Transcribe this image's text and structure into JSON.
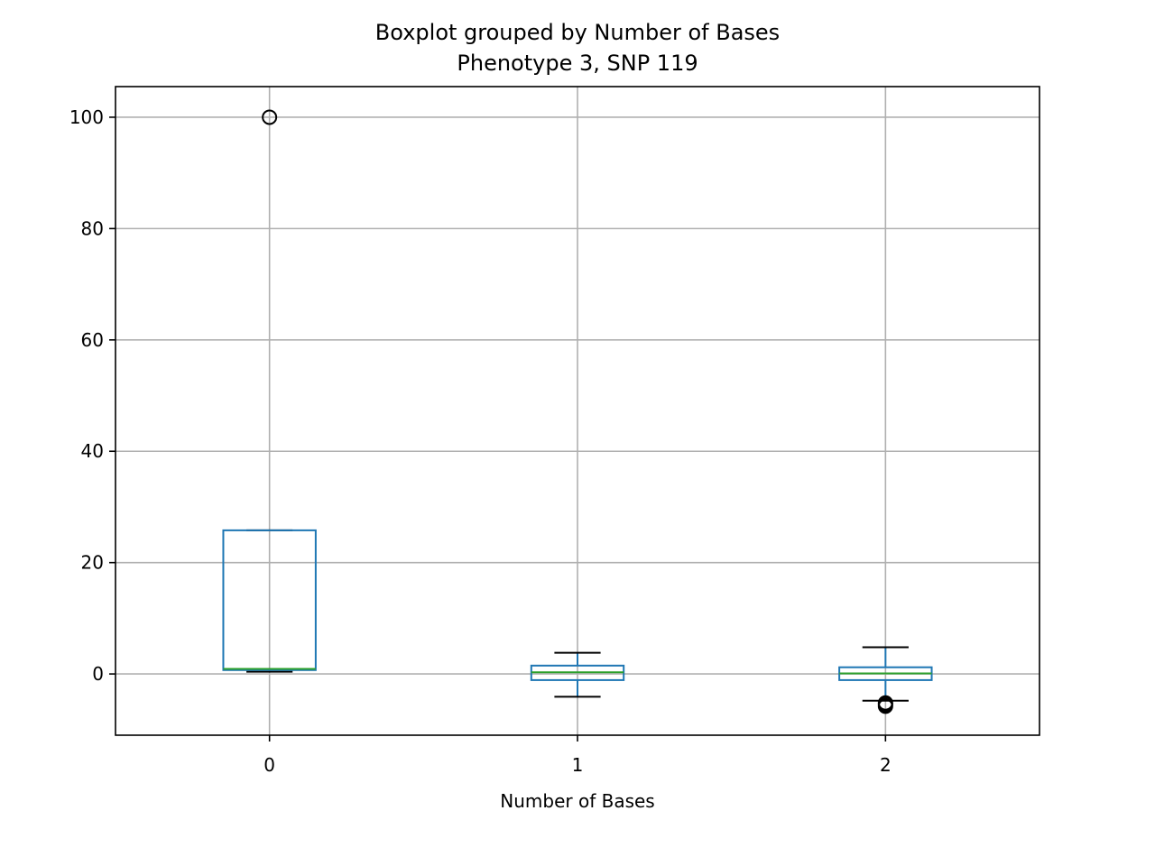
{
  "chart_data": {
    "type": "box",
    "title": "Boxplot grouped by Number of Bases",
    "subtitle": "Phenotype 3, SNP 119",
    "xlabel": "Number of Bases",
    "ylabel": "",
    "categories": [
      "0",
      "1",
      "2"
    ],
    "ylim": [
      -11,
      105.5
    ],
    "yticks": [
      0,
      20,
      40,
      60,
      80,
      100
    ],
    "grid": true,
    "boxes": [
      {
        "category": "0",
        "whisker_low": 0.4,
        "q1": 0.7,
        "median": 0.9,
        "q3": 25.8,
        "whisker_high": 25.8,
        "outliers": [
          100
        ]
      },
      {
        "category": "1",
        "whisker_low": -4.1,
        "q1": -1.1,
        "median": 0.3,
        "q3": 1.5,
        "whisker_high": 3.8,
        "outliers": []
      },
      {
        "category": "2",
        "whisker_low": -4.8,
        "q1": -1.1,
        "median": 0.1,
        "q3": 1.2,
        "whisker_high": 4.8,
        "outliers": [
          -5.2,
          -5.5,
          -5.8
        ]
      }
    ],
    "colors": {
      "box": "#1f77b4",
      "median": "#2ca02c",
      "whisker_cap": "#000000",
      "grid": "#b0b0b0"
    }
  }
}
